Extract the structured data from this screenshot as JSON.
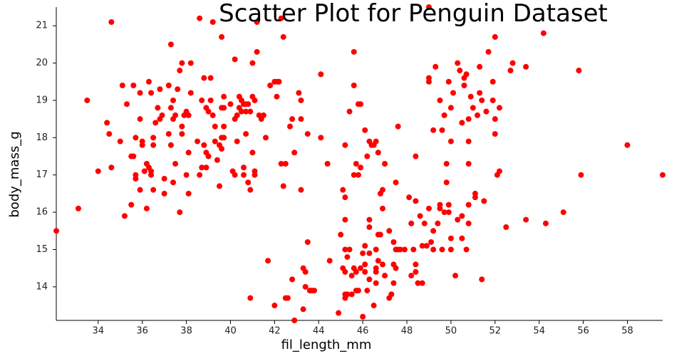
{
  "chart_data": {
    "type": "scatter",
    "title": "Scatter Plot for Penguin Dataset",
    "x_label": "fil_length_mm",
    "y_label": "body_mass_g",
    "color": "#ff0000",
    "xlim": [
      32.1,
      59.6
    ],
    "ylim": [
      13.1,
      21.5
    ],
    "xticks": [
      34,
      36,
      38,
      40,
      42,
      44,
      46,
      48,
      50,
      52,
      54,
      56,
      58
    ],
    "yticks": [
      14,
      15,
      16,
      17,
      18,
      19,
      20,
      21
    ],
    "x": [
      32.1,
      33.1,
      33.5,
      34.0,
      34.4,
      34.5,
      34.6,
      34.6,
      35.0,
      35.1,
      35.2,
      35.3,
      35.5,
      35.5,
      35.6,
      35.6,
      35.7,
      35.7,
      35.7,
      35.9,
      36.0,
      35.9,
      36.0,
      35.9,
      36.1,
      36.2,
      36.2,
      36.3,
      36.3,
      36.4,
      36.4,
      36.4,
      36.5,
      36.5,
      36.5,
      36.6,
      36.7,
      36.8,
      36.8,
      36.9,
      37.0,
      37.0,
      37.2,
      37.2,
      37.3,
      37.3,
      37.3,
      37.4,
      37.4,
      37.4,
      37.5,
      37.5,
      37.6,
      37.7,
      37.7,
      37.8,
      37.8,
      37.8,
      37.9,
      38.0,
      38.0,
      38.1,
      38.1,
      38.1,
      38.2,
      38.2,
      38.5,
      38.6,
      38.6,
      38.7,
      38.7,
      38.8,
      38.8,
      38.9,
      38.9,
      38.9,
      39.0,
      39.0,
      39.1,
      39.1,
      39.2,
      39.2,
      39.3,
      39.3,
      39.4,
      39.5,
      39.5,
      39.6,
      39.6,
      39.6,
      39.6,
      39.7,
      39.7,
      39.7,
      39.7,
      40.0,
      40.1,
      40.2,
      40.2,
      40.2,
      40.3,
      40.3,
      40.4,
      40.4,
      40.5,
      40.5,
      40.6,
      40.6,
      40.6,
      40.7,
      40.7,
      40.7,
      40.8,
      40.8,
      40.9,
      40.9,
      40.9,
      41.0,
      41.0,
      41.1,
      41.0,
      41.1,
      41.1,
      41.2,
      41.2,
      41.3,
      41.4,
      41.5,
      41.6,
      41.7,
      41.8,
      42.0,
      42.0,
      42.1,
      42.1,
      42.2,
      42.3,
      42.3,
      42.4,
      42.5,
      42.4,
      42.5,
      42.6,
      42.7,
      42.8,
      42.8,
      42.9,
      42.9,
      43.1,
      43.2,
      43.2,
      43.2,
      43.3,
      43.3,
      43.4,
      43.4,
      43.5,
      43.5,
      43.6,
      43.7,
      43.8,
      44.1,
      44.1,
      44.4,
      44.5,
      44.9,
      45.0,
      45.1,
      45.1,
      45.2,
      45.2,
      45.2,
      45.2,
      45.2,
      45.2,
      45.2,
      45.3,
      45.3,
      45.4,
      45.4,
      45.5,
      45.5,
      45.6,
      45.6,
      45.6,
      45.6,
      45.7,
      45.7,
      45.7,
      45.8,
      45.8,
      45.8,
      45.9,
      45.9,
      45.9,
      46.0,
      46.0,
      46.1,
      46.1,
      46.1,
      46.1,
      46.2,
      46.2,
      46.3,
      46.3,
      46.3,
      46.3,
      46.3,
      46.4,
      46.5,
      46.5,
      46.6,
      46.6,
      46.6,
      46.6,
      46.6,
      46.7,
      46.7,
      46.7,
      46.8,
      46.8,
      46.9,
      46.9,
      46.9,
      47.0,
      47.0,
      47.2,
      47.2,
      47.3,
      47.4,
      47.4,
      47.5,
      47.4,
      47.5,
      47.6,
      47.6,
      47.5,
      47.7,
      47.9,
      48.1,
      48.2,
      48.2,
      48.3,
      48.4,
      48.4,
      48.4,
      48.4,
      48.5,
      48.6,
      48.7,
      48.7,
      48.8,
      48.9,
      49.0,
      49.0,
      49.0,
      49.0,
      49.1,
      49.2,
      49.2,
      49.2,
      49.3,
      49.4,
      49.5,
      49.5,
      49.5,
      49.6,
      49.6,
      49.7,
      49.7,
      49.8,
      49.8,
      49.9,
      49.9,
      49.9,
      50.0,
      50.0,
      50.0,
      50.0,
      50.1,
      50.2,
      50.3,
      50.3,
      50.4,
      50.5,
      50.5,
      50.5,
      50.6,
      50.6,
      50.7,
      50.7,
      50.8,
      50.8,
      50.8,
      50.8,
      50.8,
      50.9,
      51.0,
      51.1,
      51.1,
      51.2,
      51.3,
      51.3,
      51.4,
      51.4,
      51.5,
      51.6,
      51.7,
      51.9,
      51.9,
      52.0,
      52.0,
      52.0,
      52.1,
      52.2,
      52.2,
      52.5,
      52.7,
      52.8,
      53.4,
      53.4,
      54.2,
      54.3,
      55.1,
      55.8,
      55.9,
      58.0,
      59.6
    ],
    "values": [
      15.5,
      16.1,
      19.0,
      17.1,
      18.4,
      18.1,
      21.1,
      17.2,
      17.9,
      19.4,
      15.9,
      18.9,
      16.2,
      17.5,
      19.4,
      17.5,
      18.0,
      17.0,
      16.9,
      19.2,
      17.8,
      18.5,
      17.9,
      16.6,
      17.1,
      17.3,
      16.1,
      17.2,
      19.5,
      17.1,
      17.0,
      19.2,
      18.0,
      16.6,
      17.8,
      18.4,
      18.8,
      19.3,
      18.5,
      18.6,
      16.9,
      16.5,
      19.4,
      18.1,
      20.5,
      17.8,
      18.8,
      18.5,
      16.8,
      19.0,
      17.3,
      18.6,
      19.3,
      19.8,
      16.0,
      18.3,
      20.0,
      18.1,
      18.6,
      17.0,
      18.7,
      18.6,
      17.6,
      16.5,
      20.0,
      19.2,
      17.9,
      21.2,
      17.0,
      17.2,
      19.0,
      19.6,
      17.8,
      18.8,
      17.6,
      17.2,
      18.7,
      17.5,
      19.6,
      19.0,
      21.1,
      18.6,
      18.3,
      17.9,
      17.4,
      17.8,
      16.7,
      20.7,
      18.8,
      17.7,
      18.0,
      18.8,
      18.3,
      19.1,
      18.0,
      18.9,
      17.1,
      17.0,
      20.1,
      18.5,
      17.9,
      18.6,
      19.1,
      18.8,
      18.7,
      19.0,
      17.2,
      18.9,
      17.0,
      18.7,
      18.9,
      18.1,
      18.9,
      16.8,
      16.6,
      13.7,
      18.7,
      20.0,
      17.6,
      17.0,
      19.1,
      17.1,
      19.0,
      20.3,
      21.1,
      18.6,
      18.5,
      18.6,
      18.0,
      14.7,
      19.4,
      19.5,
      13.5,
      19.1,
      19.5,
      19.5,
      21.2,
      17.3,
      20.7,
      17.3,
      16.7,
      13.7,
      13.7,
      18.3,
      18.5,
      14.2,
      17.6,
      13.1,
      19.2,
      19.0,
      18.5,
      16.6,
      14.5,
      13.4,
      14.0,
      14.4,
      15.2,
      18.1,
      13.9,
      13.9,
      13.9,
      19.7,
      18.0,
      17.3,
      14.7,
      13.3,
      15.4,
      14.5,
      16.6,
      17.8,
      15.8,
      13.8,
      14.4,
      15.0,
      16.4,
      13.7,
      14.8,
      13.8,
      18.7,
      15.0,
      14.3,
      13.8,
      20.3,
      17.0,
      19.4,
      14.5,
      13.9,
      14.4,
      17.3,
      17.0,
      18.9,
      13.9,
      17.2,
      14.5,
      18.9,
      14.9,
      13.2,
      18.2,
      14.6,
      15.1,
      14.4,
      17.5,
      13.9,
      14.2,
      15.8,
      17.9,
      15.6,
      14.9,
      17.8,
      13.5,
      17.8,
      14.5,
      14.4,
      17.9,
      15.0,
      14.1,
      14.7,
      17.6,
      15.4,
      16.5,
      15.4,
      16.6,
      16.1,
      14.6,
      17.3,
      14.3,
      15.5,
      13.7,
      13.8,
      15.2,
      14.6,
      14.5,
      14.1,
      15.0,
      18.3,
      15.0,
      16.8,
      15.0,
      15.0,
      16.4,
      14.3,
      15.7,
      15.0,
      16.3,
      14.6,
      17.5,
      14.4,
      14.1,
      15.9,
      15.1,
      14.1,
      15.7,
      15.1,
      21.5,
      19.6,
      19.5,
      16.1,
      15.2,
      18.2,
      15.5,
      15.0,
      19.9,
      15.7,
      16.2,
      16.1,
      19.0,
      18.2,
      15.0,
      18.6,
      16.0,
      17.3,
      16.8,
      19.5,
      16.0,
      16.2,
      18.8,
      15.3,
      15.0,
      17.9,
      19.2,
      14.3,
      20.0,
      15.8,
      19.8,
      15.3,
      18.4,
      15.9,
      19.4,
      19.6,
      19.7,
      15.0,
      18.5,
      17.9,
      15.7,
      17.3,
      16.2,
      19.1,
      18.8,
      16.4,
      16.5,
      18.6,
      19.9,
      19.2,
      14.2,
      19.0,
      16.3,
      18.7,
      20.3,
      19.5,
      19.0,
      18.1,
      20.7,
      18.5,
      17.0,
      17.1,
      18.8,
      15.6,
      19.8,
      20.0,
      19.9,
      15.8,
      20.8,
      15.7,
      16.0,
      19.8,
      17.0,
      17.8,
      17.0
    ]
  }
}
